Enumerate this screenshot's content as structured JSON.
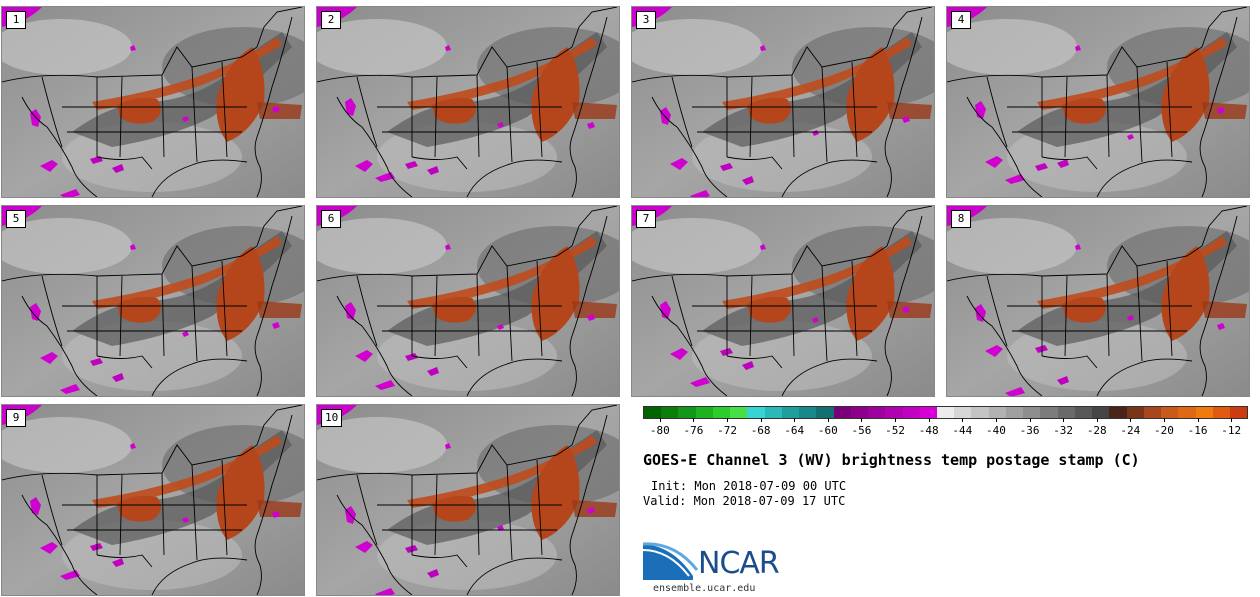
{
  "panels": [
    {
      "label": "1"
    },
    {
      "label": "2"
    },
    {
      "label": "3"
    },
    {
      "label": "4"
    },
    {
      "label": "5"
    },
    {
      "label": "6"
    },
    {
      "label": "7"
    },
    {
      "label": "8"
    },
    {
      "label": "9"
    },
    {
      "label": "10"
    }
  ],
  "colorbar": {
    "colors": [
      "#006400",
      "#0a7d0a",
      "#12961a",
      "#1fb21f",
      "#2bcc2b",
      "#46e046",
      "#38d4d4",
      "#2ab8b8",
      "#1f9e9e",
      "#188888",
      "#127070",
      "#7a007a",
      "#8c008c",
      "#9e009e",
      "#b000b0",
      "#c200c2",
      "#d600d6",
      "#ececec",
      "#d6d6d6",
      "#c4c4c4",
      "#b2b2b2",
      "#a0a0a0",
      "#8e8e8e",
      "#7c7c7c",
      "#6a6a6a",
      "#585858",
      "#464646",
      "#4a2418",
      "#7a3418",
      "#a8461c",
      "#c85a1c",
      "#e06814",
      "#f07a10",
      "#e25a12",
      "#cc3c10"
    ],
    "tick_labels": [
      "-80",
      "-76",
      "-72",
      "-68",
      "-64",
      "-60",
      "-56",
      "-52",
      "-48",
      "-44",
      "-40",
      "-36",
      "-32",
      "-28",
      "-24",
      "-20",
      "-16",
      "-12"
    ],
    "min": -82,
    "max": -10
  },
  "header": {
    "title": "GOES-E Channel 3 (WV) brightness temp postage stamp (C)",
    "init": "Init: Mon 2018-07-09 00 UTC",
    "valid": "Valid: Mon 2018-07-09 17 UTC"
  },
  "logo": {
    "text": "NCAR",
    "site": "ensemble.ucar.edu"
  }
}
